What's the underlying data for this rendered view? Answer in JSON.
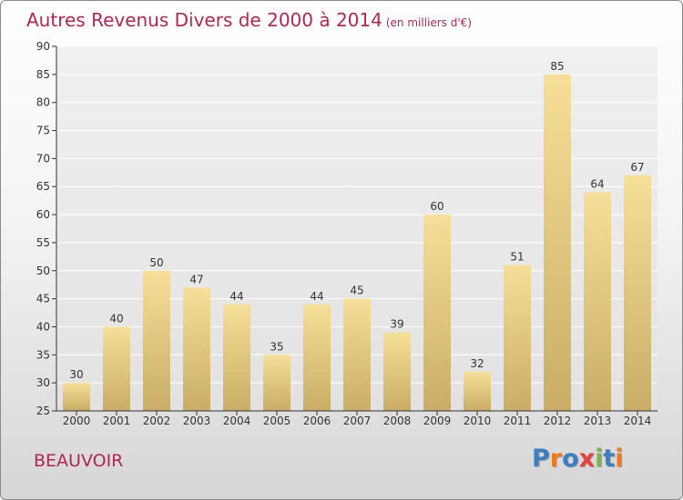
{
  "title": "Autres Revenus Divers de 2000 à 2014",
  "unit_label": "(en milliers d'€)",
  "commune": "BEAUVOIR",
  "logo": {
    "text": "Proxiti",
    "letters": [
      "P",
      "r",
      "o",
      "x",
      "i",
      "t",
      "i"
    ],
    "letter_colors": [
      "#3a7fc4",
      "#f07a1a",
      "#3a7fc4",
      "#e8403a",
      "#7ab648",
      "#3a7fc4",
      "#f07a1a"
    ]
  },
  "colors": {
    "title": "#b0274f",
    "bar_top": "#f6df98",
    "bar_bottom": "#c9ad66",
    "axis": "#333333",
    "grid": "#ffffff"
  },
  "chart_data": {
    "type": "bar",
    "categories": [
      "2000",
      "2001",
      "2002",
      "2003",
      "2004",
      "2005",
      "2006",
      "2007",
      "2008",
      "2009",
      "2010",
      "2011",
      "2012",
      "2013",
      "2014"
    ],
    "values": [
      30,
      40,
      50,
      47,
      44,
      35,
      44,
      45,
      39,
      60,
      32,
      51,
      85,
      64,
      67
    ],
    "ylim": [
      25,
      90
    ],
    "yticks": [
      25,
      30,
      35,
      40,
      45,
      50,
      55,
      60,
      65,
      70,
      75,
      80,
      85,
      90
    ],
    "grid": true,
    "xlabel": "",
    "ylabel": ""
  }
}
